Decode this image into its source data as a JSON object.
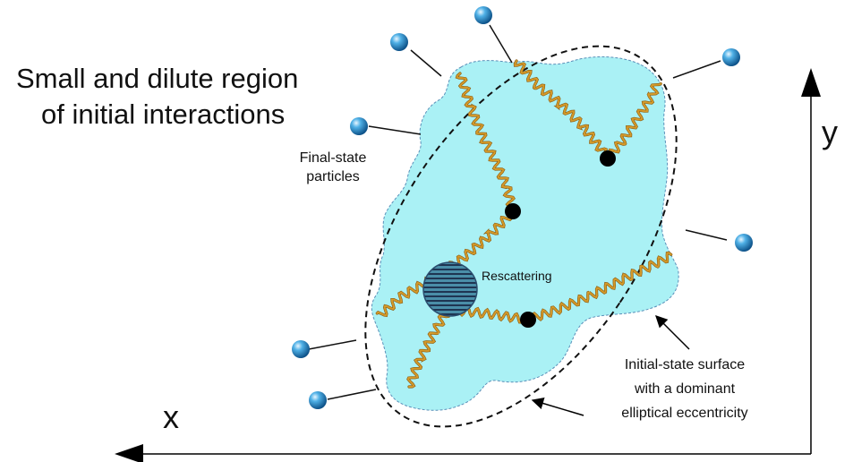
{
  "title": {
    "line1": "Small and dilute region",
    "line2": "of initial interactions"
  },
  "labels": {
    "final_state_line1": "Final-state",
    "final_state_line2": "particles",
    "rescattering": "Rescattering",
    "surface_line1": "Initial-state surface",
    "surface_line2": "with a dominant",
    "surface_line3": "elliptical eccentricity"
  },
  "axes": {
    "x": "x",
    "y": "y"
  },
  "colors": {
    "region_fill": "#aaf1f5",
    "region_stroke": "#5a8fb8",
    "gluon": "#d49a2a",
    "particle": "#1a86c7",
    "vertex": "#000000",
    "rescattering_fill": "#3b7e98",
    "rescattering_stripes": "#1a2a44"
  }
}
